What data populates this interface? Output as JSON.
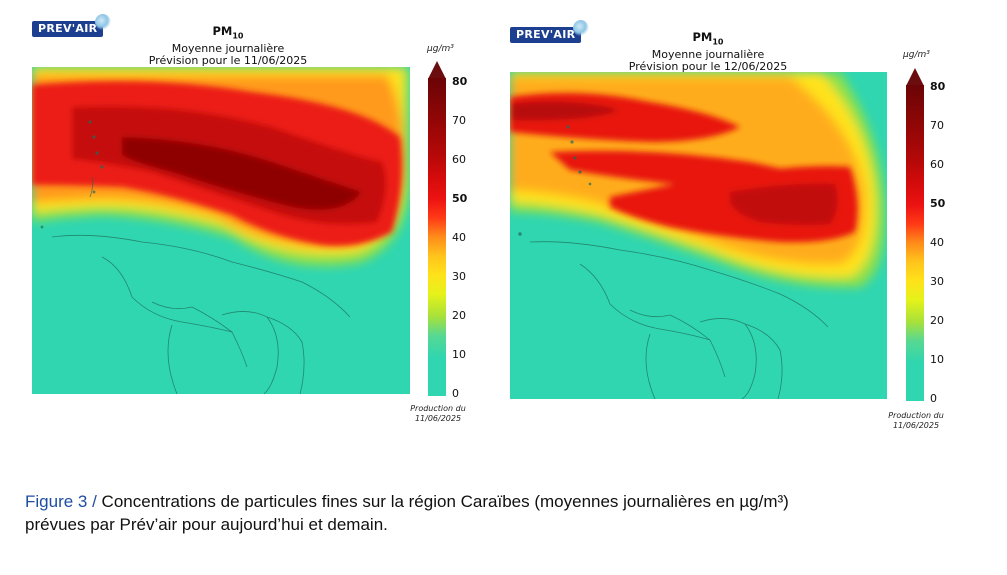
{
  "logo_text": "PREV'AIR",
  "unit_label": "µg/m³",
  "colorbar_ticks": [
    "80",
    "70",
    "60",
    "50",
    "40",
    "30",
    "20",
    "10",
    "0"
  ],
  "maps": [
    {
      "pollutant_main": "PM",
      "pollutant_sub": "10",
      "subtitle": "Moyenne journalière",
      "forecast_label": "Prévision pour le 11/06/2025",
      "production_line1": "Production du",
      "production_line2": "11/06/2025"
    },
    {
      "pollutant_main": "PM",
      "pollutant_sub": "10",
      "subtitle": "Moyenne journalière",
      "forecast_label": "Prévision pour le 12/06/2025",
      "production_line1": "Production du",
      "production_line2": "11/06/2025"
    }
  ],
  "colorscale": {
    "0": "#2fd6b0",
    "20": "#a7e13a",
    "30": "#ffe21a",
    "40": "#ffb01c",
    "50": "#ff2a16",
    "60": "#d30b0b",
    "80": "#6b0406"
  },
  "caption": {
    "figure_label": "Figure 3 /",
    "text_line1": "Concentrations de particules fines sur la région Caraïbes (moyennes journalières en µg/m³)",
    "text_line2": "prévues par Prév’air pour aujourd’hui et demain."
  }
}
